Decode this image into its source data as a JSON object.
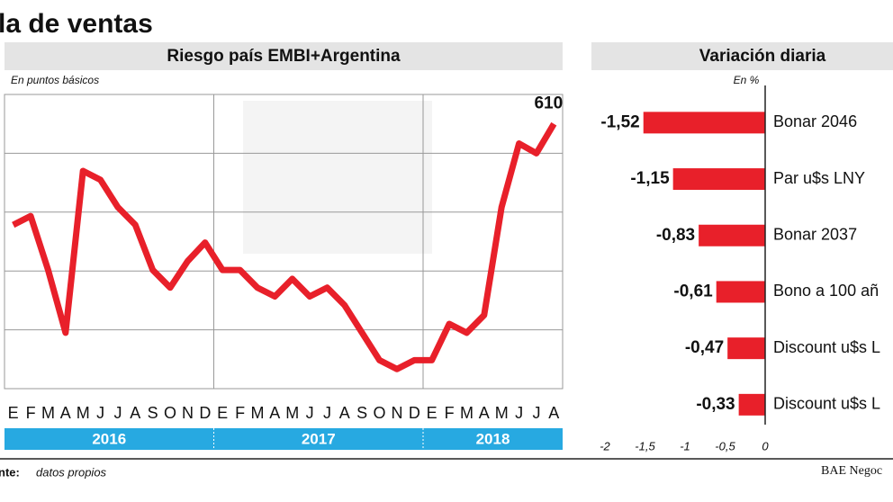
{
  "title": "la de ventas",
  "chart_data": [
    {
      "type": "line",
      "title": "Riesgo país EMBI+Argentina",
      "subtitle": "En puntos básicos",
      "categories": [
        "E",
        "F",
        "M",
        "A",
        "M",
        "J",
        "J",
        "A",
        "S",
        "O",
        "N",
        "D",
        "E",
        "F",
        "M",
        "A",
        "M",
        "J",
        "J",
        "A",
        "S",
        "O",
        "N",
        "D",
        "E",
        "F",
        "M",
        "A",
        "M",
        "J",
        "J",
        "A"
      ],
      "years": [
        "2016",
        "2017",
        "2018"
      ],
      "values": [
        507,
        516,
        461,
        397,
        562,
        553,
        525,
        507,
        461,
        443,
        470,
        489,
        461,
        461,
        443,
        434,
        452,
        434,
        443,
        425,
        397,
        369,
        360,
        369,
        369,
        406,
        397,
        415,
        525,
        590,
        580,
        610
      ],
      "color": "#e8202a",
      "ylim": [
        340,
        640
      ],
      "grid": true
    },
    {
      "type": "hbar",
      "title": "Variación diaria",
      "subtitle": "En %",
      "categories": [
        "Bonar 2046",
        "Par u$s LNY",
        "Bonar 2037",
        "Bono a 100 añ",
        "Discount u$s L",
        "Discount u$s L"
      ],
      "values": [
        -1.52,
        -1.15,
        -0.83,
        -0.61,
        -0.47,
        -0.33
      ],
      "value_labels": [
        "-1,52",
        "-1,15",
        "-0,83",
        "-0,61",
        "-0,47",
        "-0,33"
      ],
      "color": "#e8202a",
      "xlim": [
        -2,
        0
      ],
      "xticks": [
        -2,
        {
          "value": -1.5,
          "label": "-1,5"
        },
        -1,
        {
          "value": -0.5,
          "label": "-0,5"
        },
        0
      ]
    }
  ],
  "footer": {
    "source_label": "nte:",
    "source": "datos propios",
    "credit": "BAE Negoc"
  }
}
